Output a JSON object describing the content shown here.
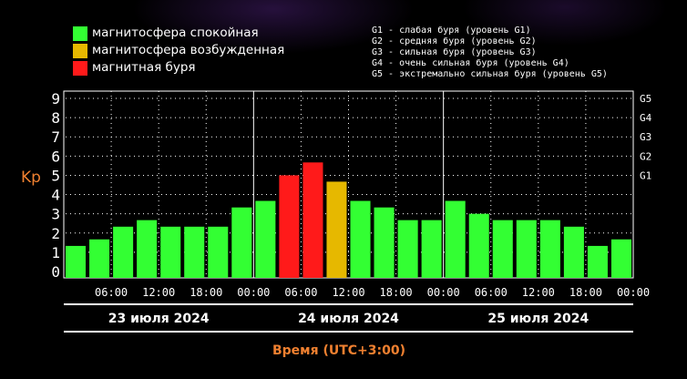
{
  "legend": {
    "items": [
      {
        "label": "магнитосфера спокойная",
        "color": "#33ff33"
      },
      {
        "label": "магнитосфера возбужденная",
        "color": "#e6b800"
      },
      {
        "label": "магнитная буря",
        "color": "#ff1a1a"
      }
    ],
    "storm_levels": [
      "G1 - слабая буря (уровень G1)",
      "G2 - средняя буря (уровень G2)",
      "G3 - сильная буря (уровень G3)",
      "G4 - очень сильная буря (уровень G4)",
      "G5 - экстремально сильная буря (уровень G5)"
    ]
  },
  "chart_data": {
    "type": "bar",
    "ylabel": "Kp",
    "xlabel": "Время (UTC+3:00)",
    "ylim": [
      0,
      9
    ],
    "yticks": [
      "0",
      "1",
      "2",
      "3",
      "4",
      "5",
      "6",
      "7",
      "8",
      "9"
    ],
    "right_ticks": [
      {
        "label": "G1",
        "value": 5
      },
      {
        "label": "G2",
        "value": 6
      },
      {
        "label": "G3",
        "value": 7
      },
      {
        "label": "G4",
        "value": 8
      },
      {
        "label": "G5",
        "value": 9
      }
    ],
    "xtick_labels": [
      "06:00",
      "12:00",
      "18:00",
      "00:00",
      "06:00",
      "12:00",
      "18:00",
      "00:00",
      "06:00",
      "12:00",
      "18:00",
      "00:00"
    ],
    "days": [
      "23 июля 2024",
      "24 июля 2024",
      "25 июля 2024"
    ],
    "grid": "dotted",
    "values": [
      1.33,
      1.67,
      2.33,
      2.67,
      2.33,
      2.33,
      2.33,
      3.33,
      3.67,
      5.0,
      5.67,
      4.67,
      3.67,
      3.33,
      2.67,
      2.67,
      3.67,
      3.0,
      2.67,
      2.67,
      2.67,
      2.33,
      1.33,
      1.67
    ],
    "colors": {
      "quiet": "#33ff33",
      "active": "#e6b800",
      "storm": "#ff1a1a"
    },
    "storm_threshold": 5
  }
}
